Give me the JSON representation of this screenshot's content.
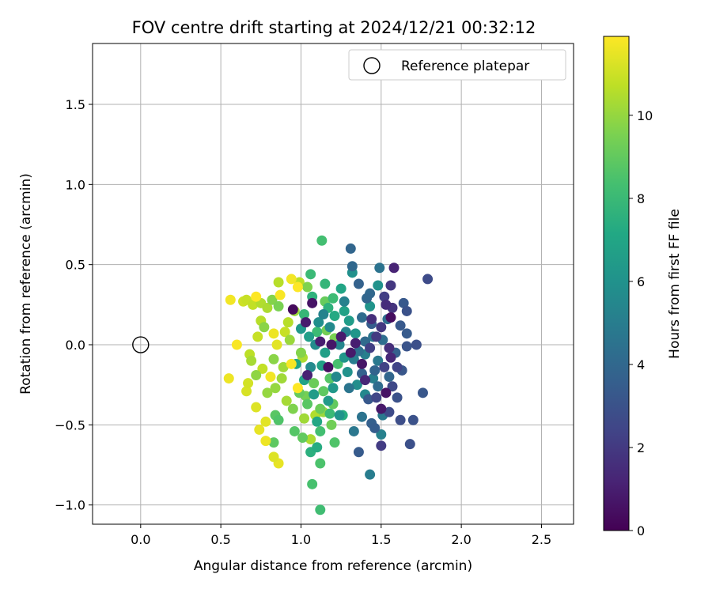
{
  "chart_data": {
    "type": "scatter",
    "title": "FOV centre drift starting at 2024/12/21 00:32:12",
    "xlabel": "Angular distance from reference (arcmin)",
    "ylabel": "Rotation from reference (arcmin)",
    "xlim": [
      -0.3,
      2.7
    ],
    "ylim": [
      -1.12,
      1.88
    ],
    "xticks": [
      0.0,
      0.5,
      1.0,
      1.5,
      2.0,
      2.5
    ],
    "xtick_labels": [
      "0.0",
      "0.5",
      "1.0",
      "1.5",
      "2.0",
      "2.5"
    ],
    "yticks": [
      -1.0,
      -0.5,
      0.0,
      0.5,
      1.0,
      1.5
    ],
    "ytick_labels": [
      "−1.0",
      "−0.5",
      "0.0",
      "0.5",
      "1.0",
      "1.5"
    ],
    "grid": true,
    "legend": {
      "placement": "top-right",
      "entries": [
        {
          "label": "Reference platepar",
          "marker": "open-circle"
        }
      ]
    },
    "reference_point": {
      "x": 0.0,
      "y": 0.0
    },
    "colorbar": {
      "label": "Hours from first FF file",
      "colormap": "viridis",
      "range": [
        0,
        11.9
      ],
      "ticks": [
        0,
        2,
        4,
        6,
        8,
        10
      ],
      "tick_labels": [
        "0",
        "2",
        "4",
        "6",
        "8",
        "10"
      ],
      "colors": [
        "#440154",
        "#482475",
        "#414487",
        "#355f8d",
        "#2a788e",
        "#21918c",
        "#22a884",
        "#44bf70",
        "#7ad151",
        "#bddf26",
        "#fde725"
      ]
    },
    "points": [
      {
        "x": 0.95,
        "y": 0.22,
        "h": 0.3
      },
      {
        "x": 1.07,
        "y": 0.26,
        "h": 0.6
      },
      {
        "x": 1.03,
        "y": 0.14,
        "h": 0.9
      },
      {
        "x": 1.12,
        "y": 0.02,
        "h": 1.0
      },
      {
        "x": 1.31,
        "y": -0.05,
        "h": 0.8
      },
      {
        "x": 1.17,
        "y": -0.14,
        "h": 0.5
      },
      {
        "x": 1.38,
        "y": -0.12,
        "h": 0.7
      },
      {
        "x": 1.25,
        "y": 0.05,
        "h": 0.9
      },
      {
        "x": 1.04,
        "y": -0.19,
        "h": 1.1
      },
      {
        "x": 1.53,
        "y": -0.3,
        "h": 0.6
      },
      {
        "x": 1.5,
        "y": -0.4,
        "h": 0.8
      },
      {
        "x": 1.56,
        "y": 0.17,
        "h": 0.4
      },
      {
        "x": 1.58,
        "y": 0.48,
        "h": 1.2
      },
      {
        "x": 1.53,
        "y": 0.25,
        "h": 1.5
      },
      {
        "x": 1.57,
        "y": 0.23,
        "h": 1.8
      },
      {
        "x": 1.56,
        "y": -0.08,
        "h": 1.3
      },
      {
        "x": 1.55,
        "y": -0.02,
        "h": 1.6
      },
      {
        "x": 1.5,
        "y": 0.11,
        "h": 1.9
      },
      {
        "x": 1.5,
        "y": -0.63,
        "h": 2.1
      },
      {
        "x": 1.52,
        "y": -0.14,
        "h": 2.3
      },
      {
        "x": 1.47,
        "y": 0.05,
        "h": 2.0
      },
      {
        "x": 1.6,
        "y": -0.14,
        "h": 2.4
      },
      {
        "x": 1.43,
        "y": -0.02,
        "h": 2.2
      },
      {
        "x": 1.57,
        "y": -0.26,
        "h": 2.6
      },
      {
        "x": 1.62,
        "y": -0.47,
        "h": 2.8
      },
      {
        "x": 1.79,
        "y": 0.41,
        "h": 2.7
      },
      {
        "x": 1.68,
        "y": -0.62,
        "h": 2.9
      },
      {
        "x": 1.7,
        "y": -0.47,
        "h": 3.0
      },
      {
        "x": 1.66,
        "y": -0.01,
        "h": 3.1
      },
      {
        "x": 1.72,
        "y": 0.0,
        "h": 2.9
      },
      {
        "x": 1.76,
        "y": -0.3,
        "h": 3.2
      },
      {
        "x": 1.64,
        "y": 0.26,
        "h": 3.3
      },
      {
        "x": 1.66,
        "y": 0.21,
        "h": 3.0
      },
      {
        "x": 1.63,
        "y": -0.16,
        "h": 3.2
      },
      {
        "x": 1.66,
        "y": 0.07,
        "h": 3.4
      },
      {
        "x": 1.42,
        "y": -0.34,
        "h": 3.3
      },
      {
        "x": 1.46,
        "y": -0.52,
        "h": 3.5
      },
      {
        "x": 1.44,
        "y": -0.49,
        "h": 3.6
      },
      {
        "x": 1.36,
        "y": -0.67,
        "h": 3.4
      },
      {
        "x": 1.38,
        "y": -0.18,
        "h": 3.7
      },
      {
        "x": 1.46,
        "y": -0.16,
        "h": 3.8
      },
      {
        "x": 1.44,
        "y": 0.13,
        "h": 3.5
      },
      {
        "x": 1.31,
        "y": 0.6,
        "h": 3.9
      },
      {
        "x": 1.32,
        "y": 0.49,
        "h": 4.0
      },
      {
        "x": 1.36,
        "y": 0.38,
        "h": 3.7
      },
      {
        "x": 1.41,
        "y": 0.29,
        "h": 3.9
      },
      {
        "x": 1.43,
        "y": 0.32,
        "h": 4.0
      },
      {
        "x": 1.38,
        "y": 0.17,
        "h": 4.2
      },
      {
        "x": 1.49,
        "y": 0.48,
        "h": 4.5
      },
      {
        "x": 1.54,
        "y": 0.16,
        "h": 4.3
      },
      {
        "x": 1.4,
        "y": 0.02,
        "h": 4.1
      },
      {
        "x": 1.48,
        "y": -0.26,
        "h": 4.2
      },
      {
        "x": 1.36,
        "y": -0.04,
        "h": 4.4
      },
      {
        "x": 1.3,
        "y": -0.27,
        "h": 4.6
      },
      {
        "x": 1.38,
        "y": -0.45,
        "h": 4.5
      },
      {
        "x": 1.51,
        "y": -0.44,
        "h": 4.8
      },
      {
        "x": 1.33,
        "y": -0.54,
        "h": 4.7
      },
      {
        "x": 1.43,
        "y": -0.81,
        "h": 5.0
      },
      {
        "x": 1.5,
        "y": -0.56,
        "h": 5.2
      },
      {
        "x": 1.33,
        "y": -0.09,
        "h": 5.0
      },
      {
        "x": 1.4,
        "y": -0.06,
        "h": 5.1
      },
      {
        "x": 1.28,
        "y": 0.08,
        "h": 5.3
      },
      {
        "x": 1.27,
        "y": 0.27,
        "h": 5.2
      },
      {
        "x": 1.24,
        "y": 0.0,
        "h": 5.4
      },
      {
        "x": 1.22,
        "y": -0.2,
        "h": 5.5
      },
      {
        "x": 1.18,
        "y": 0.11,
        "h": 5.6
      },
      {
        "x": 1.14,
        "y": 0.19,
        "h": 5.3
      },
      {
        "x": 1.09,
        "y": 0.0,
        "h": 5.7
      },
      {
        "x": 1.11,
        "y": 0.14,
        "h": 5.8
      },
      {
        "x": 1.06,
        "y": -0.14,
        "h": 5.6
      },
      {
        "x": 1.32,
        "y": 0.45,
        "h": 5.9
      },
      {
        "x": 1.48,
        "y": 0.37,
        "h": 6.0
      },
      {
        "x": 1.43,
        "y": 0.24,
        "h": 6.1
      },
      {
        "x": 1.27,
        "y": -0.08,
        "h": 6.2
      },
      {
        "x": 1.2,
        "y": -0.27,
        "h": 6.3
      },
      {
        "x": 1.24,
        "y": -0.44,
        "h": 6.1
      },
      {
        "x": 1.17,
        "y": -0.35,
        "h": 6.4
      },
      {
        "x": 1.08,
        "y": -0.31,
        "h": 6.5
      },
      {
        "x": 1.0,
        "y": 0.1,
        "h": 6.3
      },
      {
        "x": 1.05,
        "y": 0.05,
        "h": 6.6
      },
      {
        "x": 1.15,
        "y": -0.05,
        "h": 6.7
      },
      {
        "x": 1.13,
        "y": -0.13,
        "h": 6.8
      },
      {
        "x": 1.02,
        "y": -0.22,
        "h": 6.9
      },
      {
        "x": 0.97,
        "y": -0.12,
        "h": 7.0
      },
      {
        "x": 1.1,
        "y": -0.48,
        "h": 7.1
      },
      {
        "x": 1.1,
        "y": -0.64,
        "h": 7.3
      },
      {
        "x": 1.06,
        "y": -0.67,
        "h": 7.5
      },
      {
        "x": 1.26,
        "y": -0.44,
        "h": 7.4
      },
      {
        "x": 1.17,
        "y": 0.23,
        "h": 7.6
      },
      {
        "x": 1.15,
        "y": 0.38,
        "h": 7.8
      },
      {
        "x": 1.06,
        "y": 0.44,
        "h": 8.0
      },
      {
        "x": 1.13,
        "y": 0.65,
        "h": 8.3
      },
      {
        "x": 1.2,
        "y": 0.29,
        "h": 8.1
      },
      {
        "x": 1.12,
        "y": -1.03,
        "h": 8.2
      },
      {
        "x": 1.07,
        "y": -0.87,
        "h": 8.4
      },
      {
        "x": 1.12,
        "y": -0.74,
        "h": 8.5
      },
      {
        "x": 1.12,
        "y": -0.54,
        "h": 8.3
      },
      {
        "x": 1.21,
        "y": -0.61,
        "h": 8.6
      },
      {
        "x": 0.96,
        "y": -0.54,
        "h": 8.7
      },
      {
        "x": 0.84,
        "y": -0.44,
        "h": 8.8
      },
      {
        "x": 0.86,
        "y": -0.47,
        "h": 8.6
      },
      {
        "x": 0.83,
        "y": -0.61,
        "h": 8.9
      },
      {
        "x": 1.01,
        "y": -0.58,
        "h": 9.0
      },
      {
        "x": 1.04,
        "y": -0.37,
        "h": 8.8
      },
      {
        "x": 0.99,
        "y": -0.3,
        "h": 9.1
      },
      {
        "x": 1.12,
        "y": -0.4,
        "h": 9.2
      },
      {
        "x": 1.2,
        "y": -0.37,
        "h": 9.0
      },
      {
        "x": 1.19,
        "y": -0.5,
        "h": 9.3
      },
      {
        "x": 1.16,
        "y": 0.09,
        "h": 9.4
      },
      {
        "x": 1.21,
        "y": 0.04,
        "h": 9.5
      },
      {
        "x": 1.04,
        "y": 0.36,
        "h": 9.6
      },
      {
        "x": 0.82,
        "y": 0.28,
        "h": 9.7
      },
      {
        "x": 0.86,
        "y": 0.24,
        "h": 9.5
      },
      {
        "x": 0.77,
        "y": 0.11,
        "h": 9.8
      },
      {
        "x": 0.72,
        "y": -0.19,
        "h": 9.9
      },
      {
        "x": 0.79,
        "y": -0.3,
        "h": 10.0
      },
      {
        "x": 0.83,
        "y": -0.09,
        "h": 9.8
      },
      {
        "x": 0.93,
        "y": 0.03,
        "h": 10.1
      },
      {
        "x": 0.89,
        "y": -0.14,
        "h": 10.2
      },
      {
        "x": 0.91,
        "y": -0.35,
        "h": 10.3
      },
      {
        "x": 1.02,
        "y": -0.46,
        "h": 10.2
      },
      {
        "x": 1.06,
        "y": -0.59,
        "h": 10.4
      },
      {
        "x": 1.09,
        "y": -0.44,
        "h": 10.5
      },
      {
        "x": 1.14,
        "y": -0.42,
        "h": 10.1
      },
      {
        "x": 0.86,
        "y": 0.39,
        "h": 10.6
      },
      {
        "x": 0.99,
        "y": 0.39,
        "h": 10.7
      },
      {
        "x": 0.75,
        "y": 0.26,
        "h": 10.5
      },
      {
        "x": 0.7,
        "y": 0.25,
        "h": 10.8
      },
      {
        "x": 0.66,
        "y": 0.28,
        "h": 10.9
      },
      {
        "x": 0.64,
        "y": 0.27,
        "h": 11.0
      },
      {
        "x": 0.68,
        "y": -0.06,
        "h": 10.7
      },
      {
        "x": 0.67,
        "y": -0.24,
        "h": 11.1
      },
      {
        "x": 0.66,
        "y": -0.29,
        "h": 11.2
      },
      {
        "x": 0.72,
        "y": -0.39,
        "h": 11.3
      },
      {
        "x": 0.78,
        "y": -0.48,
        "h": 11.4
      },
      {
        "x": 0.74,
        "y": -0.53,
        "h": 11.5
      },
      {
        "x": 0.78,
        "y": -0.6,
        "h": 11.6
      },
      {
        "x": 0.83,
        "y": -0.7,
        "h": 11.3
      },
      {
        "x": 0.86,
        "y": -0.74,
        "h": 11.5
      },
      {
        "x": 0.56,
        "y": 0.28,
        "h": 11.7
      },
      {
        "x": 0.6,
        "y": 0.0,
        "h": 11.8
      },
      {
        "x": 0.55,
        "y": -0.21,
        "h": 11.6
      },
      {
        "x": 0.72,
        "y": 0.3,
        "h": 11.9
      },
      {
        "x": 0.87,
        "y": 0.31,
        "h": 11.8
      },
      {
        "x": 0.94,
        "y": 0.41,
        "h": 11.7
      },
      {
        "x": 0.98,
        "y": 0.36,
        "h": 11.9
      },
      {
        "x": 0.83,
        "y": 0.07,
        "h": 11.6
      },
      {
        "x": 0.85,
        "y": 0.0,
        "h": 11.4
      },
      {
        "x": 0.94,
        "y": -0.12,
        "h": 11.8
      },
      {
        "x": 0.98,
        "y": -0.27,
        "h": 11.9
      },
      {
        "x": 0.81,
        "y": -0.2,
        "h": 11.7
      },
      {
        "x": 0.79,
        "y": 0.23,
        "h": 10.4
      },
      {
        "x": 0.75,
        "y": 0.15,
        "h": 10.6
      },
      {
        "x": 0.73,
        "y": 0.05,
        "h": 10.9
      },
      {
        "x": 0.69,
        "y": -0.1,
        "h": 10.3
      },
      {
        "x": 0.76,
        "y": -0.15,
        "h": 10.8
      },
      {
        "x": 0.84,
        "y": -0.27,
        "h": 10.0
      },
      {
        "x": 0.88,
        "y": -0.21,
        "h": 10.2
      },
      {
        "x": 0.92,
        "y": 0.14,
        "h": 10.6
      },
      {
        "x": 0.96,
        "y": 0.21,
        "h": 10.1
      },
      {
        "x": 1.0,
        "y": -0.05,
        "h": 9.7
      },
      {
        "x": 1.03,
        "y": -0.32,
        "h": 9.4
      },
      {
        "x": 1.08,
        "y": -0.24,
        "h": 9.2
      },
      {
        "x": 1.14,
        "y": -0.29,
        "h": 8.9
      },
      {
        "x": 1.18,
        "y": -0.21,
        "h": 8.7
      },
      {
        "x": 1.23,
        "y": -0.12,
        "h": 8.4
      },
      {
        "x": 1.1,
        "y": 0.08,
        "h": 8.1
      },
      {
        "x": 1.02,
        "y": 0.19,
        "h": 7.9
      },
      {
        "x": 1.07,
        "y": 0.3,
        "h": 7.6
      },
      {
        "x": 1.21,
        "y": 0.18,
        "h": 7.2
      },
      {
        "x": 1.27,
        "y": 0.21,
        "h": 6.8
      },
      {
        "x": 1.3,
        "y": 0.15,
        "h": 6.5
      },
      {
        "x": 1.34,
        "y": 0.07,
        "h": 6.2
      },
      {
        "x": 1.29,
        "y": -0.17,
        "h": 6.0
      },
      {
        "x": 1.35,
        "y": -0.25,
        "h": 5.8
      },
      {
        "x": 1.4,
        "y": -0.31,
        "h": 5.5
      },
      {
        "x": 1.45,
        "y": -0.21,
        "h": 5.1
      },
      {
        "x": 1.48,
        "y": -0.1,
        "h": 4.8
      },
      {
        "x": 1.45,
        "y": 0.05,
        "h": 4.6
      },
      {
        "x": 1.51,
        "y": 0.03,
        "h": 4.3
      },
      {
        "x": 1.55,
        "y": -0.2,
        "h": 3.9
      },
      {
        "x": 1.59,
        "y": -0.05,
        "h": 3.6
      },
      {
        "x": 1.62,
        "y": 0.12,
        "h": 3.3
      },
      {
        "x": 1.6,
        "y": -0.33,
        "h": 3.0
      },
      {
        "x": 1.55,
        "y": -0.42,
        "h": 2.7
      },
      {
        "x": 1.47,
        "y": -0.33,
        "h": 2.5
      },
      {
        "x": 1.52,
        "y": 0.3,
        "h": 2.2
      },
      {
        "x": 1.56,
        "y": 0.37,
        "h": 1.9
      },
      {
        "x": 1.44,
        "y": 0.16,
        "h": 1.6
      },
      {
        "x": 1.4,
        "y": -0.22,
        "h": 1.3
      },
      {
        "x": 1.34,
        "y": 0.01,
        "h": 1.0
      },
      {
        "x": 1.19,
        "y": 0.0,
        "h": 0.7
      },
      {
        "x": 1.15,
        "y": 0.27,
        "h": 9.1
      },
      {
        "x": 1.25,
        "y": 0.35,
        "h": 7.0
      },
      {
        "x": 1.01,
        "y": -0.08,
        "h": 10.4
      },
      {
        "x": 0.9,
        "y": 0.08,
        "h": 10.9
      },
      {
        "x": 0.95,
        "y": -0.4,
        "h": 9.6
      },
      {
        "x": 1.18,
        "y": -0.43,
        "h": 8.0
      }
    ]
  }
}
